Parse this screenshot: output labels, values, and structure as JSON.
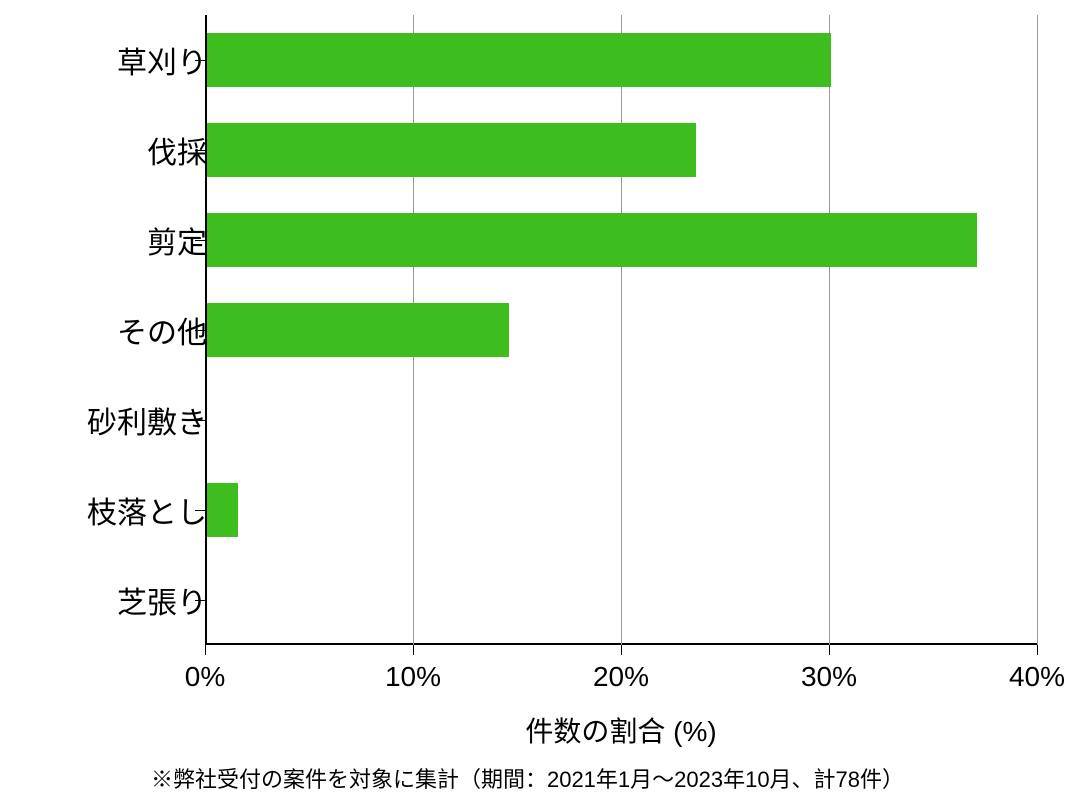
{
  "chart": {
    "type": "bar",
    "orientation": "horizontal",
    "categories": [
      "草刈り",
      "伐採",
      "剪定",
      "その他",
      "砂利敷き",
      "枝落とし",
      "芝張り"
    ],
    "values": [
      30,
      23.5,
      37,
      14.5,
      0,
      1.5,
      0
    ],
    "bar_color": "#3dbd1e",
    "background_color": "#ffffff",
    "axis_color": "#000000",
    "grid_color": "#999999",
    "xlim": [
      0,
      40
    ],
    "xtick_step": 10,
    "xtick_labels": [
      "0%",
      "10%",
      "20%",
      "30%",
      "40%"
    ],
    "x_axis_title": "件数の割合 (%)",
    "bar_height_ratio": 0.6,
    "label_fontsize": 30,
    "tick_fontsize": 28,
    "axis_title_fontsize": 28,
    "footnote_fontsize": 22
  },
  "footnote": "※弊社受付の案件を対象に集計（期間：2021年1月～2023年10月、計78件）"
}
